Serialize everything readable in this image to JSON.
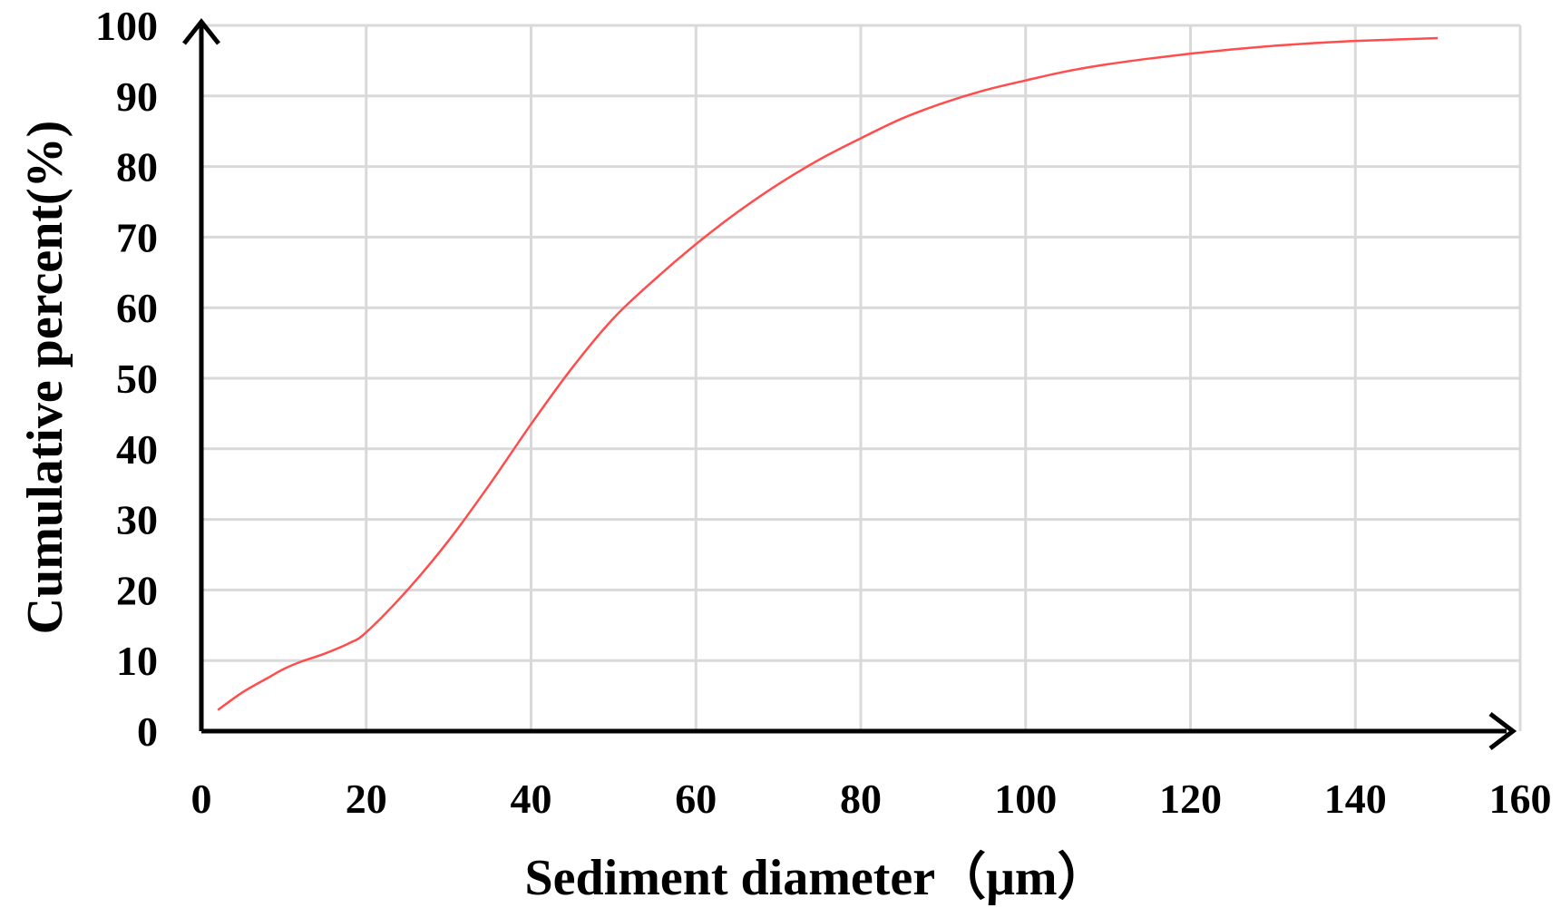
{
  "chart_data": {
    "type": "line",
    "title": "",
    "xlabel": "Sediment diameter（μm）",
    "ylabel": "Cumulative percent(%)",
    "xlim": [
      0,
      160
    ],
    "ylim": [
      0,
      100
    ],
    "x_ticks": [
      "0",
      "20",
      "40",
      "60",
      "80",
      "100",
      "120",
      "140",
      "160"
    ],
    "y_ticks": [
      "0",
      "10",
      "20",
      "30",
      "40",
      "50",
      "60",
      "70",
      "80",
      "90",
      "100"
    ],
    "grid": true,
    "legend": "none",
    "colors": {
      "line": "#ff4d4d",
      "grid": "#d9d9d9",
      "axis": "#000000"
    },
    "series": [
      {
        "x": [
          2,
          5,
          8,
          10,
          12,
          15,
          18,
          20,
          25,
          30,
          35,
          40,
          45,
          50,
          55,
          60,
          65,
          70,
          75,
          80,
          85,
          90,
          95,
          100,
          105,
          110,
          115,
          120,
          125,
          130,
          135,
          140,
          145,
          150
        ],
        "y": [
          3,
          5.5,
          7.5,
          8.8,
          9.8,
          11,
          12.5,
          14,
          20,
          27,
          35,
          43.5,
          51.5,
          58.5,
          64,
          69,
          73.5,
          77.5,
          81,
          84,
          86.8,
          89,
          90.8,
          92.2,
          93.5,
          94.5,
          95.3,
          96,
          96.6,
          97.1,
          97.5,
          97.8,
          98,
          98.2
        ]
      }
    ]
  }
}
